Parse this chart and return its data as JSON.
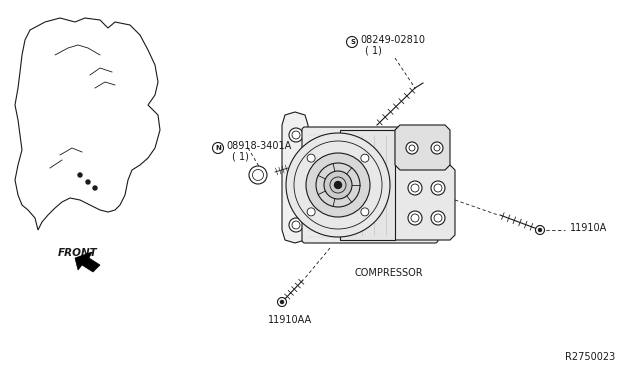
{
  "bg_color": "#ffffff",
  "line_color": "#1a1a1a",
  "fig_width": 6.4,
  "fig_height": 3.72,
  "dpi": 100,
  "labels": {
    "part1_id": "08249-02810",
    "part1_qty": "( 1)",
    "part2_id": "08918-3401A",
    "part2_qty": "( 1)",
    "compressor": "COMPRESSOR",
    "bolt1": "11910A",
    "bolt2": "11910AA",
    "front": "FRONT",
    "diagram_id": "R2750023",
    "s_sym": "S",
    "n_sym": "N"
  }
}
